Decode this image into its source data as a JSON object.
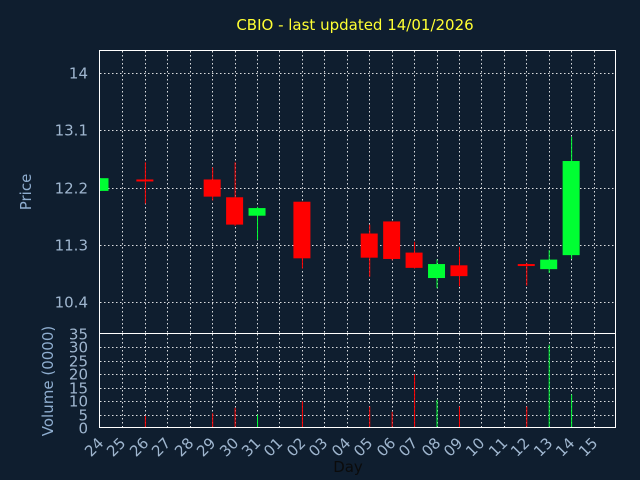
{
  "chart_data": {
    "type": "candlestick",
    "title": "CBIO - last updated 14/01/2026",
    "price_panel": {
      "ylabel": "Price",
      "ylim": [
        9.9,
        14.35
      ],
      "yticks": [
        10.4,
        11.3,
        12.2,
        13.1,
        14
      ],
      "ytick_labels": [
        "10.4",
        "11.3",
        "12.2",
        "13.1",
        "14"
      ]
    },
    "volume_panel": {
      "ylabel": "Volume (0000)",
      "ylim": [
        0,
        35
      ],
      "yticks": [
        0,
        5,
        10,
        15,
        20,
        25,
        30,
        35
      ],
      "ytick_labels": [
        "0",
        "5",
        "10",
        "15",
        "20",
        "25",
        "30",
        "35"
      ]
    },
    "xlabel": "Day",
    "days": [
      "24",
      "25",
      "26",
      "27",
      "28",
      "29",
      "30",
      "31",
      "01",
      "02",
      "03",
      "04",
      "05",
      "06",
      "07",
      "08",
      "09",
      "10",
      "11",
      "12",
      "13",
      "14",
      "15"
    ],
    "candles": [
      {
        "day": "24",
        "open": 12.15,
        "high": 12.35,
        "low": 12.15,
        "close": 12.35,
        "volume": 0
      },
      {
        "day": "26",
        "open": 12.33,
        "high": 12.6,
        "low": 11.95,
        "close": 12.3,
        "volume": 4.5
      },
      {
        "day": "29",
        "open": 12.33,
        "high": 12.52,
        "low": 12.0,
        "close": 12.06,
        "volume": 5.5
      },
      {
        "day": "30",
        "open": 12.05,
        "high": 12.6,
        "low": 11.6,
        "close": 11.62,
        "volume": 7.5
      },
      {
        "day": "31",
        "open": 11.76,
        "high": 11.9,
        "low": 11.38,
        "close": 11.88,
        "volume": 5.0
      },
      {
        "day": "02",
        "open": 11.98,
        "high": 11.98,
        "low": 10.93,
        "close": 11.09,
        "volume": 10.0
      },
      {
        "day": "05",
        "open": 11.48,
        "high": 11.62,
        "low": 10.8,
        "close": 11.1,
        "volume": 8.0
      },
      {
        "day": "06",
        "open": 11.67,
        "high": 11.67,
        "low": 11.06,
        "close": 11.08,
        "volume": 6.0
      },
      {
        "day": "07",
        "open": 11.18,
        "high": 11.35,
        "low": 10.93,
        "close": 10.94,
        "volume": 20.0
      },
      {
        "day": "08",
        "open": 10.78,
        "high": 11.07,
        "low": 10.62,
        "close": 11.0,
        "volume": 10.5
      },
      {
        "day": "09",
        "open": 10.98,
        "high": 11.27,
        "low": 10.65,
        "close": 10.81,
        "volume": 8.0
      },
      {
        "day": "12",
        "open": 11.0,
        "high": 11.02,
        "low": 10.66,
        "close": 10.97,
        "volume": 8.0
      },
      {
        "day": "13",
        "open": 10.92,
        "high": 11.22,
        "low": 10.86,
        "close": 11.07,
        "volume": 31.0
      },
      {
        "day": "14",
        "open": 11.14,
        "high": 13.0,
        "low": 11.08,
        "close": 12.62,
        "volume": 12.5
      }
    ],
    "colors": {
      "up": "#00ff33",
      "down": "#ff0000",
      "background": "#0f1e2f",
      "grid": "#ffffff",
      "title": "#ffff33"
    }
  }
}
